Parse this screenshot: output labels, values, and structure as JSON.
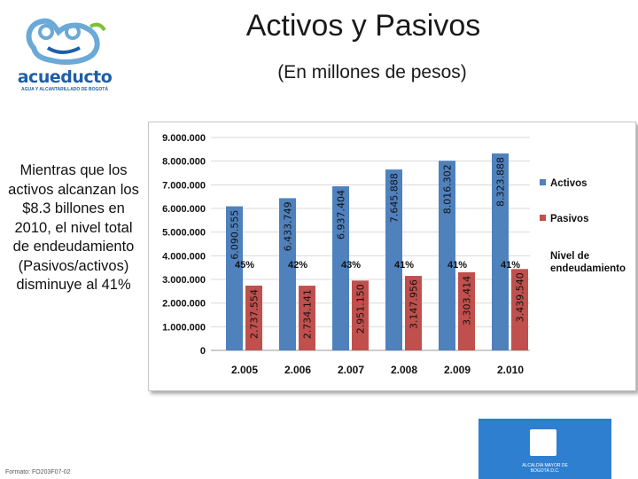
{
  "header": {
    "title": "Activos y Pasivos",
    "subtitle": "(En millones de pesos)"
  },
  "logo": {
    "name": "acueducto",
    "tagline": "AGUA Y ALCANTARILLADO DE BOGOTÁ"
  },
  "sidebar_text": "Mientras que los activos alcanzan los $8.3 billones en 2010, el nivel total de endeudamiento (Pasivos/activos) disminuye al 41%",
  "footer": {
    "code": "Formato: FO203F07-02"
  },
  "badge": {
    "text": "ALCALDÍA MAYOR DE BOGOTÁ D.C."
  },
  "colors": {
    "activos": "#4f81bd",
    "pasivos": "#c0504d"
  },
  "chart_data": {
    "type": "bar",
    "categories": [
      "2.005",
      "2.006",
      "2.007",
      "2.008",
      "2.009",
      "2.010"
    ],
    "series": [
      {
        "name": "Activos",
        "values": [
          6090555,
          6433749,
          6937404,
          7645888,
          8016302,
          8323888
        ],
        "labels": [
          "6.090.555",
          "6.433.749",
          "6.937.404",
          "7.645.888",
          "8.016.302",
          "8.323.888"
        ]
      },
      {
        "name": "Pasivos",
        "values": [
          2737554,
          2734141,
          2951150,
          3147956,
          3303414,
          3439540
        ],
        "labels": [
          "2.737.554",
          "2.734.141",
          "2.951.150",
          "3.147.956",
          "3.303.414",
          "3.439.540"
        ]
      }
    ],
    "nivel_endeudamiento": {
      "name": "Nivel de endeudamiento",
      "labels": [
        "45%",
        "42%",
        "43%",
        "41%",
        "41%",
        "41%"
      ]
    },
    "ylim": [
      0,
      9000000
    ],
    "yticks": [
      "0",
      "1.000.000",
      "2.000.000",
      "3.000.000",
      "4.000.000",
      "5.000.000",
      "6.000.000",
      "7.000.000",
      "8.000.000",
      "9.000.000"
    ],
    "grid": true,
    "legend_position": "right"
  }
}
